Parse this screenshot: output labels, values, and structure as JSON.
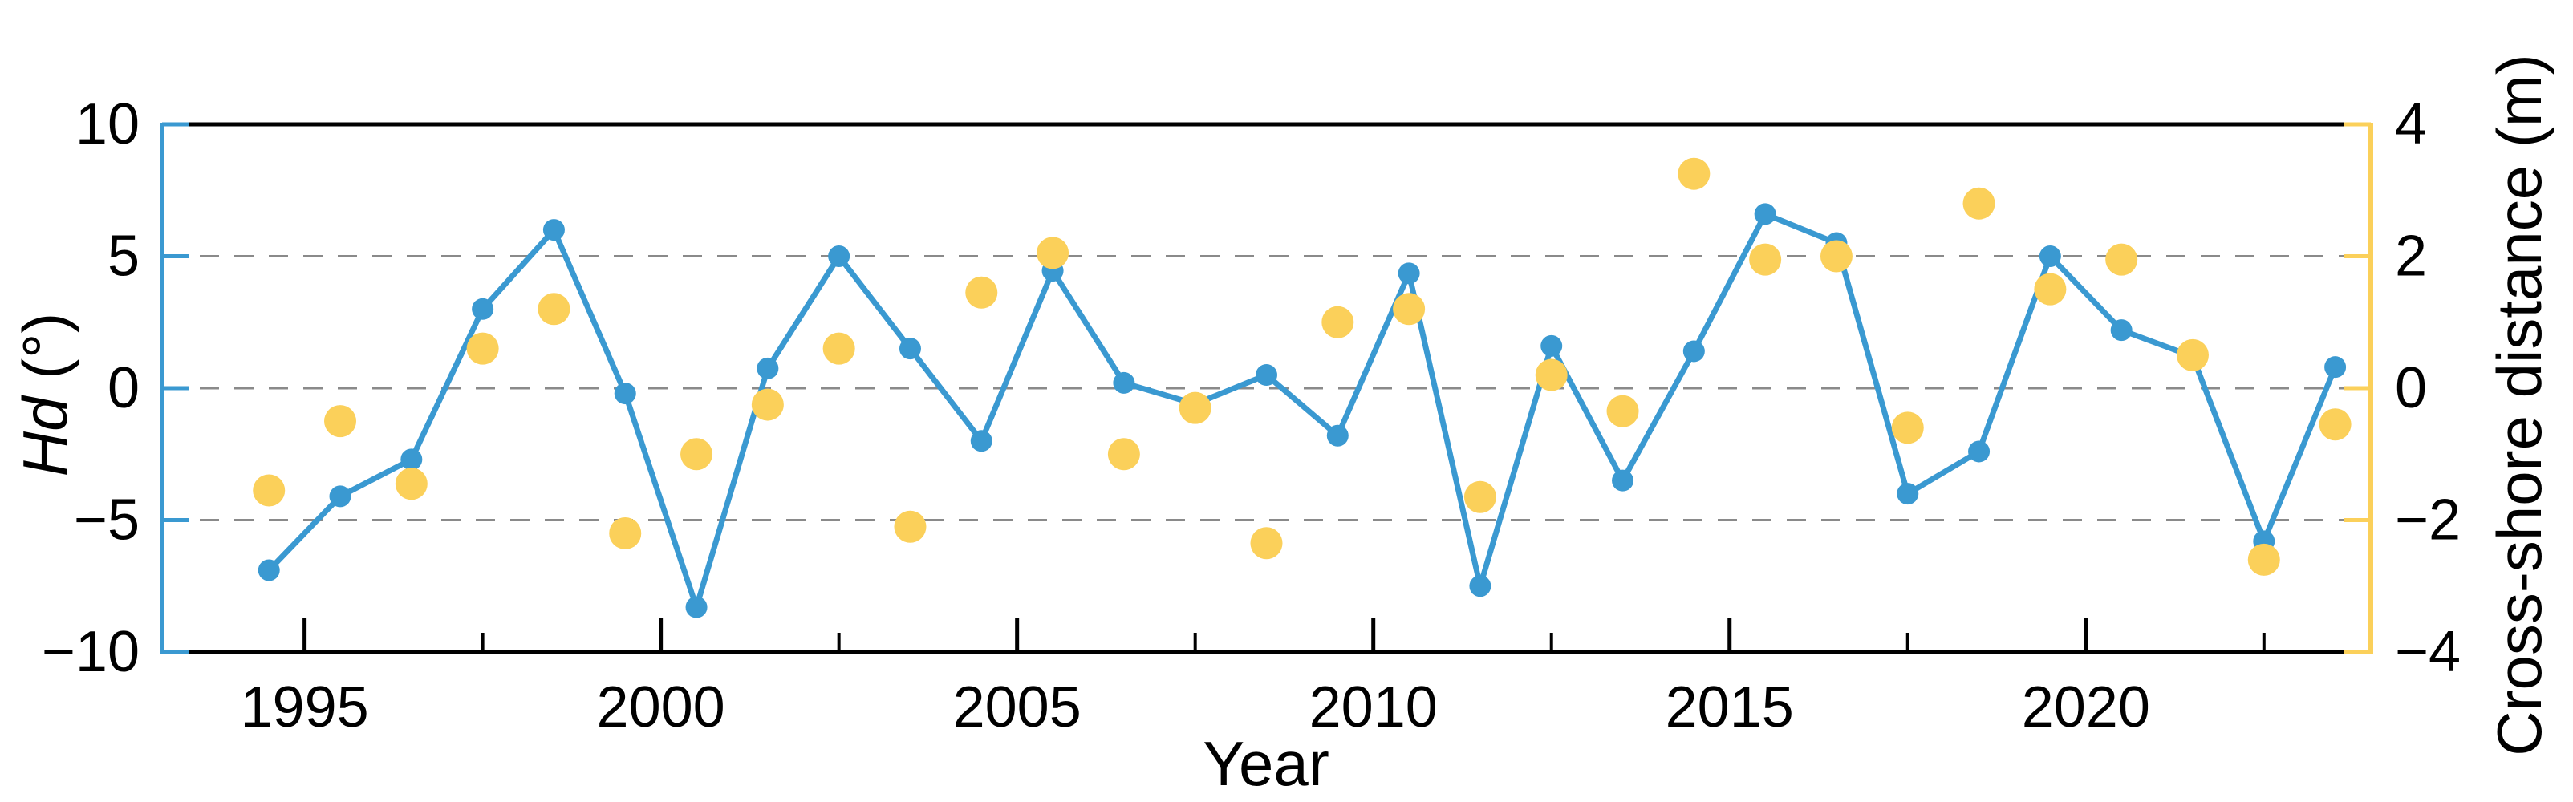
{
  "chart_data": {
    "type": "line",
    "title": "",
    "xlabel": "Year",
    "ylabel_left": {
      "italic": "Hd",
      "rest": " (°)"
    },
    "ylabel_right": "Cross-shore distance (m)",
    "x": [
      1994.5,
      1995.5,
      1996.5,
      1997.5,
      1998.5,
      1999.5,
      2000.5,
      2001.5,
      2002.5,
      2003.5,
      2004.5,
      2005.5,
      2006.5,
      2007.5,
      2008.5,
      2009.5,
      2010.5,
      2011.5,
      2012.5,
      2013.5,
      2014.5,
      2015.5,
      2016.5,
      2017.5,
      2018.5,
      2019.5,
      2020.5,
      2021.5,
      2022.5,
      2023.5
    ],
    "series": [
      {
        "name": "Hd",
        "axis": "left",
        "style": "line+marker",
        "color": "#3A99D1",
        "marker_radius": 13.5,
        "line_width": 7,
        "values": [
          -6.9,
          -4.1,
          -2.7,
          3.0,
          6.0,
          -0.2,
          -8.3,
          0.75,
          5.0,
          1.5,
          -2.0,
          4.45,
          0.2,
          -0.6,
          0.5,
          -1.8,
          4.35,
          -7.5,
          1.6,
          -3.5,
          1.4,
          6.6,
          5.5,
          -4.0,
          -2.4,
          5.0,
          2.2,
          1.2,
          -5.8,
          0.8
        ]
      },
      {
        "name": "Cross-shore distance",
        "axis": "right",
        "style": "scatter",
        "color": "#FBD05A",
        "marker_radius": 20,
        "values": [
          -1.55,
          -0.5,
          -1.45,
          0.6,
          1.2,
          -2.2,
          -1.0,
          -0.25,
          0.6,
          -2.1,
          1.45,
          2.05,
          -1.0,
          -0.3,
          -2.35,
          1.0,
          1.2,
          -1.65,
          0.2,
          -0.35,
          3.25,
          1.95,
          2.0,
          -0.6,
          2.8,
          1.5,
          1.95,
          0.5,
          -2.6,
          -0.55
        ]
      }
    ],
    "axes": {
      "x": {
        "range": [
          1993,
          2024
        ],
        "major_ticks": [
          1995,
          2000,
          2005,
          2010,
          2015,
          2020
        ],
        "minor_ticks": [
          1997.5,
          2002.5,
          2007.5,
          2012.5,
          2017.5,
          2022.5
        ],
        "color": "#000000"
      },
      "left": {
        "range": [
          -10,
          10
        ],
        "ticks": [
          10,
          5,
          0,
          -5,
          -10
        ],
        "color": "#3A99D1"
      },
      "right": {
        "range": [
          -4,
          4
        ],
        "ticks": [
          4,
          2,
          0,
          -2,
          -4
        ],
        "color": "#FBD05A"
      }
    },
    "gridlines": {
      "at_left_values": [
        5,
        0,
        -5
      ],
      "color": "#8A8A8A",
      "style": "dashed"
    },
    "legend": "none",
    "background": "#FFFFFF",
    "text_color": "#000000"
  }
}
